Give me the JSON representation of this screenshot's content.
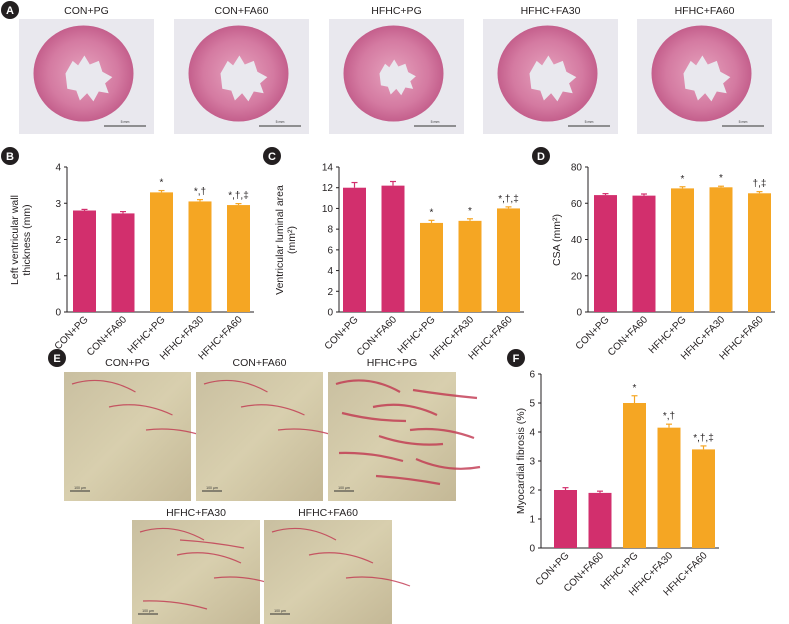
{
  "colors": {
    "pink": "#d22f6d",
    "orange": "#f5a623",
    "axis": "#231f20",
    "panel_badge": "#231f20"
  },
  "panel_letters": [
    "A",
    "B",
    "C",
    "D",
    "E",
    "F"
  ],
  "histology_a": {
    "labels": [
      "CON+PG",
      "CON+FA60",
      "HFHC+PG",
      "HFHC+FA30",
      "HFHC+FA60"
    ],
    "scale_bar": "5 mm"
  },
  "histology_e": {
    "labels": [
      "CON+PG",
      "CON+FA60",
      "HFHC+PG",
      "HFHC+FA30",
      "HFHC+FA60"
    ],
    "scale_bar": "100 µm"
  },
  "chart_data": [
    {
      "panel": "B",
      "type": "bar",
      "categories": [
        "CON+PG",
        "CON+FA60",
        "HFHC+PG",
        "HFHC+FA30",
        "HFHC+FA60"
      ],
      "values": [
        2.8,
        2.72,
        3.3,
        3.05,
        2.95
      ],
      "errors": [
        0.03,
        0.05,
        0.05,
        0.05,
        0.04
      ],
      "annotations": [
        "",
        "",
        "*",
        "*,†",
        "*,†,‡"
      ],
      "bar_colors": [
        "pink",
        "pink",
        "orange",
        "orange",
        "orange"
      ],
      "ylabel_lines": [
        "Left ventricular wall",
        "thickness (mm)"
      ],
      "yticks": [
        "0",
        "1",
        "2",
        "3",
        "4"
      ],
      "ylim": [
        0,
        4
      ]
    },
    {
      "panel": "C",
      "type": "bar",
      "categories": [
        "CON+PG",
        "CON+FA60",
        "HFHC+PG",
        "HFHC+FA30",
        "HFHC+FA60"
      ],
      "values": [
        12.0,
        12.2,
        8.6,
        8.8,
        10.0
      ],
      "errors": [
        0.5,
        0.4,
        0.25,
        0.2,
        0.15
      ],
      "annotations": [
        "",
        "",
        "*",
        "*",
        "*,†,‡"
      ],
      "bar_colors": [
        "pink",
        "pink",
        "orange",
        "orange",
        "orange"
      ],
      "ylabel_lines": [
        "Ventricular luminal area",
        "(mm²)"
      ],
      "yticks": [
        "0",
        "2",
        "4",
        "6",
        "8",
        "10",
        "12",
        "14"
      ],
      "ylim": [
        0,
        14
      ]
    },
    {
      "panel": "D",
      "type": "bar",
      "categories": [
        "CON+PG",
        "CON+FA60",
        "HFHC+PG",
        "HFHC+FA30",
        "HFHC+FA60"
      ],
      "values": [
        64.5,
        64.2,
        68.2,
        68.8,
        65.5
      ],
      "errors": [
        0.8,
        0.9,
        0.9,
        0.6,
        0.9
      ],
      "annotations": [
        "",
        "",
        "*",
        "*",
        "†,‡"
      ],
      "bar_colors": [
        "pink",
        "pink",
        "orange",
        "orange",
        "orange"
      ],
      "ylabel_lines": [
        "CSA (mm²)"
      ],
      "yticks": [
        "0",
        "20",
        "40",
        "60",
        "80"
      ],
      "ylim": [
        0,
        80
      ]
    },
    {
      "panel": "F",
      "type": "bar",
      "categories": [
        "CON+PG",
        "CON+FA60",
        "HFHC+PG",
        "HFHC+FA30",
        "HFHC+FA60"
      ],
      "values": [
        2.0,
        1.9,
        5.0,
        4.15,
        3.4
      ],
      "errors": [
        0.08,
        0.06,
        0.25,
        0.12,
        0.12
      ],
      "annotations": [
        "",
        "",
        "*",
        "*,†",
        "*,†,‡"
      ],
      "bar_colors": [
        "pink",
        "pink",
        "orange",
        "orange",
        "orange"
      ],
      "ylabel_lines": [
        "Myocardial fibrosis (%)"
      ],
      "yticks": [
        "0",
        "1",
        "2",
        "3",
        "4",
        "5",
        "6"
      ],
      "ylim": [
        0,
        6
      ]
    }
  ]
}
